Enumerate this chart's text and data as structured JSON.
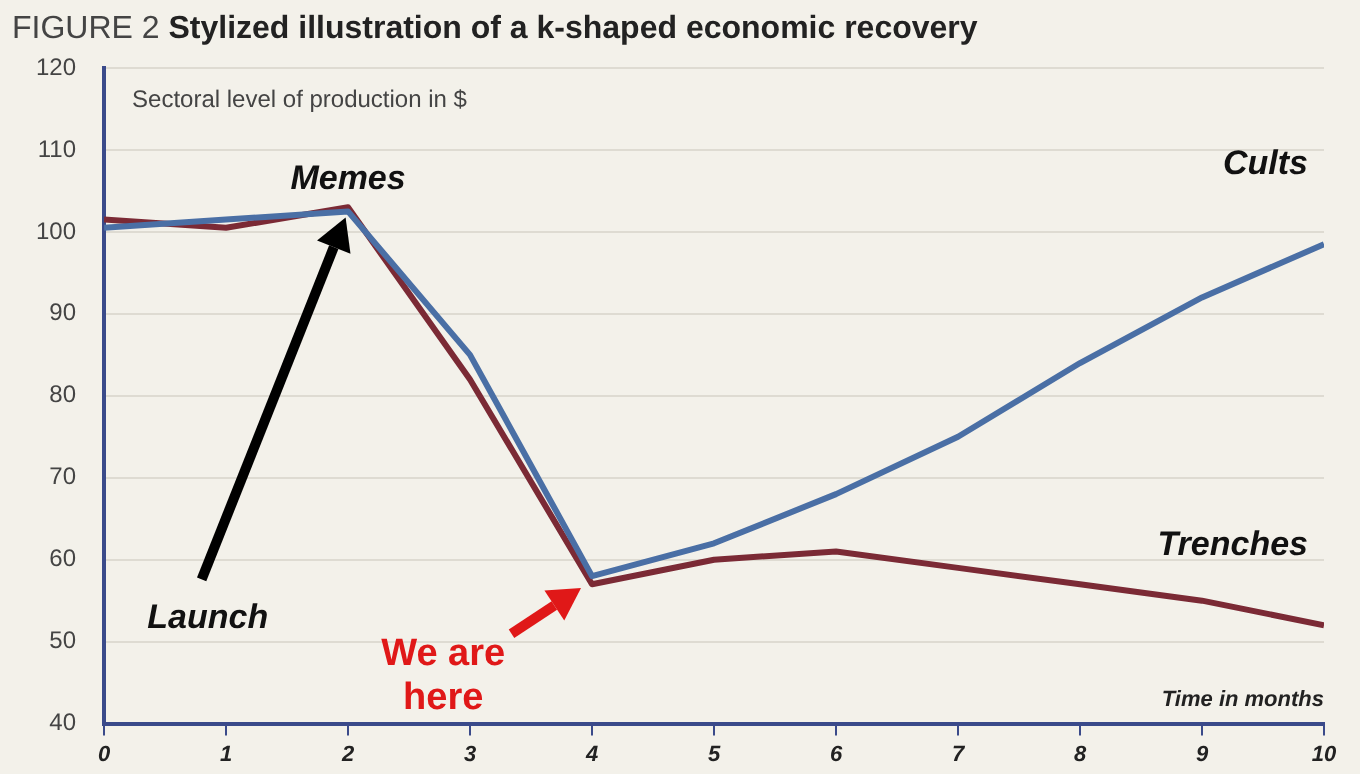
{
  "chart_data": {
    "type": "line",
    "title": "FIGURE 2 Stylized illustration of a k-shaped economic recovery",
    "ylabel": "Sectoral level of production in $",
    "xlabel": "Time in months",
    "x": [
      0,
      1,
      2,
      3,
      4,
      5,
      6,
      7,
      8,
      9,
      10
    ],
    "series": [
      {
        "name": "Cults",
        "color": "#4a6fa5",
        "values": [
          100.5,
          101.5,
          102.5,
          85,
          58,
          62,
          68,
          75,
          84,
          92,
          98.5
        ]
      },
      {
        "name": "Trenches",
        "color": "#7b2a35",
        "values": [
          101.5,
          100.5,
          103,
          82,
          57,
          60,
          61,
          59,
          57,
          55,
          52
        ]
      }
    ],
    "annotations": [
      "Memes",
      "Launch",
      "We are here"
    ],
    "xlim": [
      0,
      10
    ],
    "xticks": [
      0,
      1,
      2,
      3,
      4,
      5,
      6,
      7,
      8,
      9,
      10
    ],
    "ylim": [
      40,
      120
    ],
    "yticks": [
      40,
      50,
      60,
      70,
      80,
      90,
      100,
      110,
      120
    ],
    "grid": "y",
    "legend": false,
    "marker": "none",
    "line_style": "solid"
  }
}
